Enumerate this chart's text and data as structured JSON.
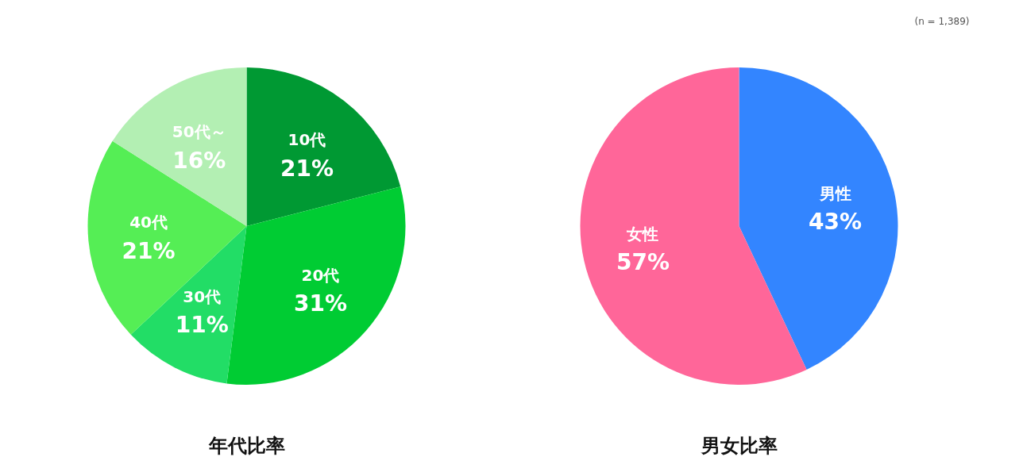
{
  "chart_data": [
    {
      "type": "pie",
      "title": "年代比率",
      "categories": [
        "10代",
        "20代",
        "30代",
        "40代",
        "50代～"
      ],
      "values": [
        21,
        31,
        11,
        21,
        16
      ],
      "value_labels": [
        "21%",
        "31%",
        "11%",
        "21%",
        "16%"
      ],
      "colors": [
        "#009933",
        "#00cc33",
        "#22dd66",
        "#55ee55",
        "#b3efb3"
      ]
    },
    {
      "type": "pie",
      "title": "男女比率",
      "categories": [
        "男性",
        "女性"
      ],
      "values": [
        43,
        57
      ],
      "value_labels": [
        "43%",
        "57%"
      ],
      "colors": [
        "#3385ff",
        "#ff6699"
      ],
      "annotations": [
        "(n = 1,389)"
      ]
    }
  ]
}
